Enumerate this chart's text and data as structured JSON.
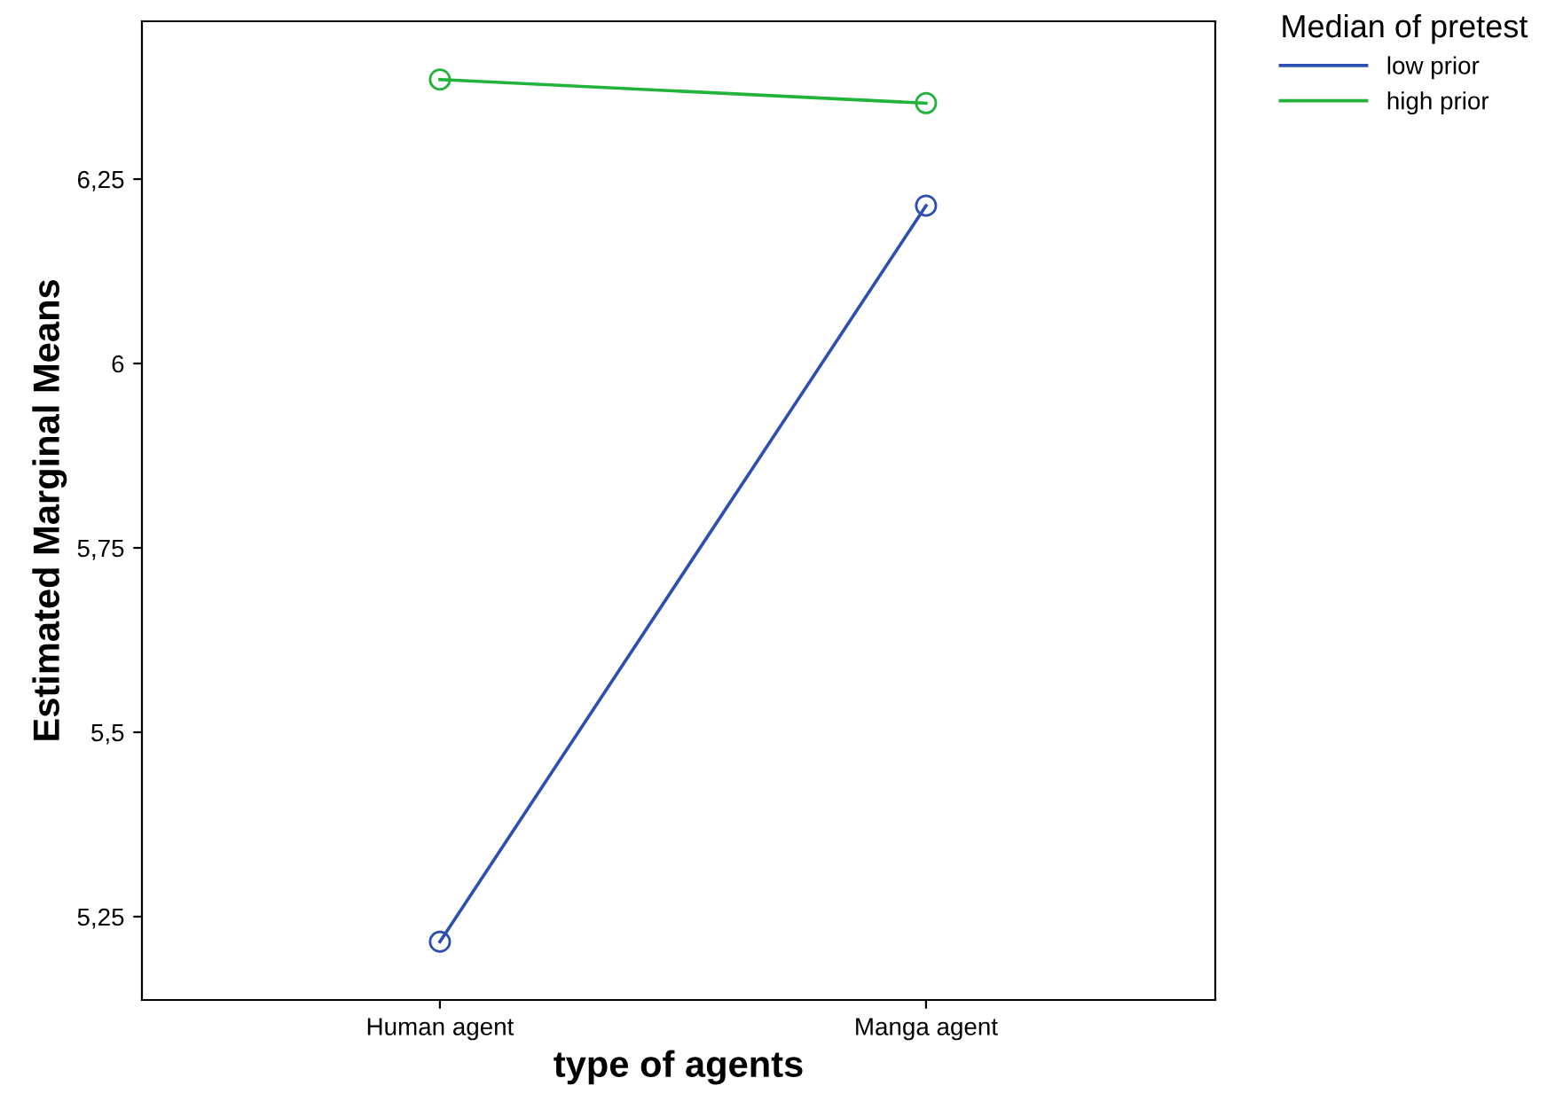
{
  "chart_data": {
    "type": "line",
    "xlabel": "type of agents",
    "ylabel": "Estimated Marginal Means",
    "legend_title": "Median of pretest",
    "categories": [
      "Human agent",
      "Manga agent"
    ],
    "series": [
      {
        "name": "low prior",
        "color": "#2d4fb4",
        "values": [
          5.216,
          6.214
        ]
      },
      {
        "name": "high prior",
        "color": "#22b33a",
        "values": [
          6.385,
          6.353
        ]
      }
    ],
    "ylim": [
      5.137,
      6.464
    ],
    "yticks": [
      {
        "value": 5.25,
        "label": "5,25"
      },
      {
        "value": 5.5,
        "label": "5,5"
      },
      {
        "value": 5.75,
        "label": "5,75"
      },
      {
        "value": 6,
        "label": "6"
      },
      {
        "value": 6.25,
        "label": "6,25"
      }
    ],
    "marker": "circle",
    "line_style": "solid",
    "grid": false,
    "legend": "top right"
  }
}
